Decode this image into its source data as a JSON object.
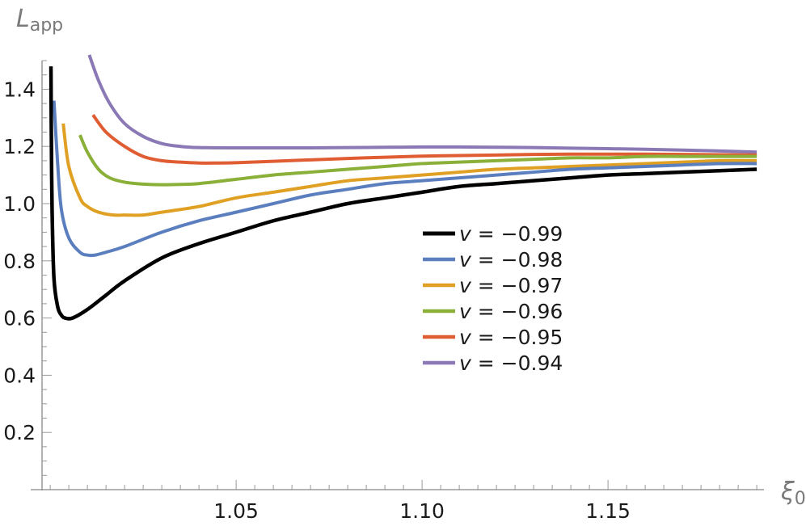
{
  "chart_data": {
    "type": "line",
    "title": "",
    "xlabel": {
      "main": "ξ",
      "sub": "0"
    },
    "ylabel": {
      "main": "L",
      "sub": "app"
    },
    "xlim": [
      0.9978,
      1.1915
    ],
    "ylim": [
      0,
      1.5
    ],
    "x_ticks": [
      {
        "value": 1.05,
        "label": "1.05"
      },
      {
        "value": 1.1,
        "label": "1.10"
      },
      {
        "value": 1.15,
        "label": "1.15"
      }
    ],
    "y_ticks": [
      {
        "value": 0.2,
        "label": "0.2"
      },
      {
        "value": 0.4,
        "label": "0.4"
      },
      {
        "value": 0.6,
        "label": "0.6"
      },
      {
        "value": 0.8,
        "label": "0.8"
      },
      {
        "value": 1.0,
        "label": "1.0"
      },
      {
        "value": 1.2,
        "label": "1.2"
      },
      {
        "value": 1.4,
        "label": "1.4"
      }
    ],
    "legend_position": "center-right",
    "series": [
      {
        "name": "v = −0.99",
        "legend_var": "v",
        "legend_rest": " = −0.99",
        "color": "#000000",
        "x": [
          1.0002,
          1.0003,
          1.0005,
          1.001,
          1.002,
          1.003,
          1.004,
          1.006,
          1.01,
          1.015,
          1.02,
          1.03,
          1.04,
          1.05,
          1.06,
          1.07,
          1.08,
          1.09,
          1.1,
          1.11,
          1.12,
          1.13,
          1.14,
          1.15,
          1.16,
          1.17,
          1.18,
          1.19
        ],
        "y": [
          1.48,
          1.25,
          0.98,
          0.74,
          0.64,
          0.61,
          0.6,
          0.6,
          0.63,
          0.68,
          0.73,
          0.81,
          0.86,
          0.9,
          0.94,
          0.97,
          1.0,
          1.02,
          1.04,
          1.06,
          1.07,
          1.08,
          1.09,
          1.1,
          1.105,
          1.11,
          1.115,
          1.12
        ]
      },
      {
        "name": "v = −0.98",
        "legend_var": "v",
        "legend_rest": " = −0.98",
        "color": "#5B7FBE",
        "x": [
          1.001,
          1.002,
          1.003,
          1.005,
          1.008,
          1.01,
          1.012,
          1.015,
          1.02,
          1.03,
          1.04,
          1.05,
          1.06,
          1.07,
          1.08,
          1.09,
          1.1,
          1.11,
          1.12,
          1.13,
          1.14,
          1.15,
          1.16,
          1.17,
          1.18,
          1.19
        ],
        "y": [
          1.36,
          1.14,
          0.98,
          0.88,
          0.83,
          0.82,
          0.82,
          0.83,
          0.85,
          0.9,
          0.94,
          0.97,
          1.0,
          1.03,
          1.05,
          1.07,
          1.08,
          1.09,
          1.1,
          1.11,
          1.12,
          1.125,
          1.13,
          1.135,
          1.14,
          1.14
        ]
      },
      {
        "name": "v = −0.97",
        "legend_var": "v",
        "legend_rest": " = −0.97",
        "color": "#E0A024",
        "x": [
          1.0035,
          1.005,
          1.008,
          1.01,
          1.013,
          1.017,
          1.02,
          1.025,
          1.03,
          1.04,
          1.05,
          1.06,
          1.07,
          1.08,
          1.09,
          1.1,
          1.11,
          1.12,
          1.13,
          1.14,
          1.15,
          1.16,
          1.17,
          1.18,
          1.19
        ],
        "y": [
          1.28,
          1.13,
          1.02,
          0.99,
          0.97,
          0.96,
          0.96,
          0.96,
          0.97,
          0.99,
          1.02,
          1.04,
          1.06,
          1.08,
          1.09,
          1.1,
          1.11,
          1.12,
          1.125,
          1.13,
          1.135,
          1.14,
          1.145,
          1.15,
          1.15
        ]
      },
      {
        "name": "v = −0.96",
        "legend_var": "v",
        "legend_rest": " = −0.96",
        "color": "#8AB03A",
        "x": [
          1.008,
          1.01,
          1.013,
          1.016,
          1.02,
          1.025,
          1.03,
          1.035,
          1.04,
          1.05,
          1.06,
          1.07,
          1.08,
          1.09,
          1.1,
          1.11,
          1.12,
          1.13,
          1.14,
          1.15,
          1.16,
          1.17,
          1.18,
          1.19
        ],
        "y": [
          1.24,
          1.18,
          1.12,
          1.09,
          1.075,
          1.068,
          1.066,
          1.067,
          1.07,
          1.085,
          1.1,
          1.11,
          1.12,
          1.13,
          1.14,
          1.145,
          1.15,
          1.155,
          1.16,
          1.16,
          1.165,
          1.165,
          1.165,
          1.165
        ]
      },
      {
        "name": "v = −0.95",
        "legend_var": "v",
        "legend_rest": " = −0.95",
        "color": "#E05C32",
        "x": [
          1.0115,
          1.015,
          1.02,
          1.025,
          1.03,
          1.035,
          1.04,
          1.045,
          1.05,
          1.06,
          1.07,
          1.08,
          1.09,
          1.1,
          1.11,
          1.12,
          1.13,
          1.14,
          1.15,
          1.16,
          1.17,
          1.18,
          1.19
        ],
        "y": [
          1.31,
          1.25,
          1.2,
          1.165,
          1.15,
          1.145,
          1.142,
          1.142,
          1.143,
          1.148,
          1.153,
          1.158,
          1.162,
          1.166,
          1.168,
          1.17,
          1.172,
          1.173,
          1.173,
          1.173,
          1.172,
          1.171,
          1.17
        ]
      },
      {
        "name": "v = −0.94",
        "legend_var": "v",
        "legend_rest": " = −0.94",
        "color": "#8A79B5",
        "x": [
          1.0105,
          1.013,
          1.016,
          1.02,
          1.025,
          1.03,
          1.035,
          1.04,
          1.05,
          1.06,
          1.07,
          1.08,
          1.09,
          1.1,
          1.11,
          1.12,
          1.13,
          1.14,
          1.15,
          1.16,
          1.17,
          1.18,
          1.19
        ],
        "y": [
          1.52,
          1.43,
          1.35,
          1.28,
          1.235,
          1.21,
          1.2,
          1.196,
          1.195,
          1.195,
          1.195,
          1.196,
          1.197,
          1.198,
          1.198,
          1.197,
          1.196,
          1.194,
          1.192,
          1.19,
          1.187,
          1.184,
          1.18
        ]
      }
    ]
  }
}
